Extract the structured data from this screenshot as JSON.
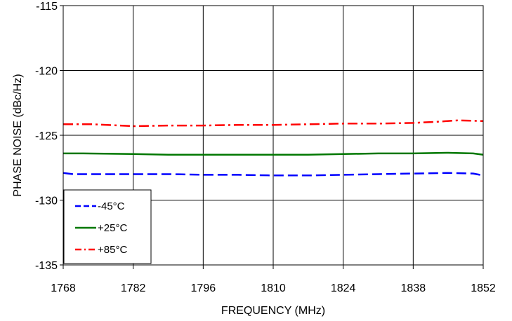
{
  "chart_data": {
    "type": "line",
    "title": "",
    "xlabel": "FREQUENCY (MHz)",
    "ylabel": "PHASE NOISE (dBc/Hz)",
    "xlim": [
      1768,
      1852
    ],
    "ylim": [
      -135,
      -115
    ],
    "xticks": [
      1768,
      1782,
      1796,
      1810,
      1824,
      1838,
      1852
    ],
    "yticks": [
      -115,
      -120,
      -125,
      -130,
      -135
    ],
    "grid": true,
    "legend_position": "bottom-left",
    "series": [
      {
        "name": "-45°C",
        "color": "#0000ff",
        "dash": "dash",
        "x": [
          1768,
          1770,
          1775,
          1782,
          1790,
          1796,
          1803,
          1810,
          1817,
          1824,
          1831,
          1838,
          1845,
          1850,
          1852
        ],
        "y": [
          -127.9,
          -128.0,
          -128.0,
          -128.0,
          -128.0,
          -128.05,
          -128.05,
          -128.1,
          -128.1,
          -128.05,
          -128.0,
          -127.95,
          -127.9,
          -127.95,
          -128.1
        ]
      },
      {
        "name": "+25°C",
        "color": "#007700",
        "dash": "solid",
        "x": [
          1768,
          1772,
          1782,
          1789,
          1796,
          1803,
          1810,
          1817,
          1824,
          1831,
          1838,
          1845,
          1850,
          1852
        ],
        "y": [
          -126.4,
          -126.4,
          -126.45,
          -126.5,
          -126.5,
          -126.5,
          -126.5,
          -126.5,
          -126.45,
          -126.4,
          -126.4,
          -126.35,
          -126.4,
          -126.5
        ]
      },
      {
        "name": "+85°C",
        "color": "#ff0000",
        "dash": "dashdot",
        "x": [
          1768,
          1774,
          1782,
          1789,
          1796,
          1803,
          1810,
          1817,
          1824,
          1831,
          1838,
          1843,
          1847,
          1852
        ],
        "y": [
          -124.15,
          -124.15,
          -124.3,
          -124.25,
          -124.25,
          -124.2,
          -124.2,
          -124.15,
          -124.1,
          -124.1,
          -124.05,
          -123.95,
          -123.85,
          -123.9
        ]
      }
    ]
  }
}
